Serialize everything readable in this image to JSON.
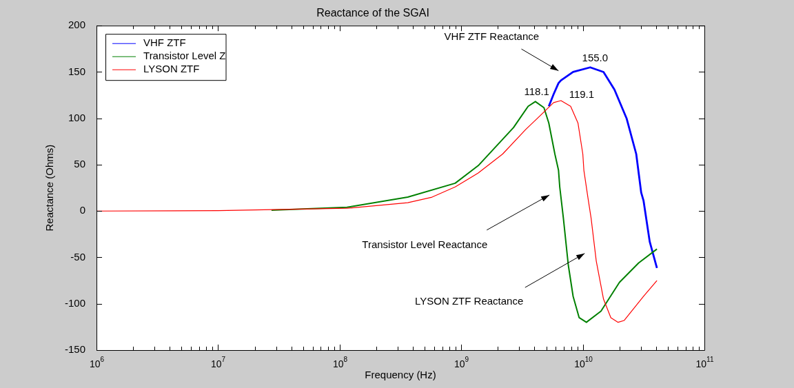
{
  "chart_data": {
    "type": "line",
    "title": "Reactance of the SGAI",
    "xlabel": "Frequency (Hz)",
    "ylabel": "Reactance (Ohms)",
    "log": "x",
    "grid": false,
    "legend": "top left",
    "marker": "none",
    "xlim": [
      1000000.0,
      100000000000.0
    ],
    "ylim": [
      -150,
      200
    ],
    "xticks": [
      {
        "value": 1000000.0,
        "label": "10$^{6}$"
      },
      {
        "value": 2000000.0,
        "label": null
      },
      {
        "value": 3000000.0,
        "label": null
      },
      {
        "value": 4000000.0,
        "label": null
      },
      {
        "value": 5000000.0,
        "label": null
      },
      {
        "value": 6000000.0,
        "label": null
      },
      {
        "value": 7000000.0,
        "label": null
      },
      {
        "value": 8000000.0,
        "label": null
      },
      {
        "value": 9000000.0,
        "label": null
      },
      {
        "value": 10000000.0,
        "label": "10$^{7}$"
      },
      {
        "value": 20000000.0,
        "label": null
      },
      {
        "value": 30000000.0,
        "label": null
      },
      {
        "value": 40000000.0,
        "label": null
      },
      {
        "value": 50000000.0,
        "label": null
      },
      {
        "value": 60000000.0,
        "label": null
      },
      {
        "value": 70000000.0,
        "label": null
      },
      {
        "value": 80000000.0,
        "label": null
      },
      {
        "value": 90000000.0,
        "label": null
      },
      {
        "value": 100000000.0,
        "label": "10$^{8}$"
      },
      {
        "value": 200000000.0,
        "label": null
      },
      {
        "value": 300000000.0,
        "label": null
      },
      {
        "value": 400000000.0,
        "label": null
      },
      {
        "value": 500000000.0,
        "label": null
      },
      {
        "value": 600000000.0,
        "label": null
      },
      {
        "value": 700000000.0,
        "label": null
      },
      {
        "value": 800000000.0,
        "label": null
      },
      {
        "value": 900000000.0,
        "label": null
      },
      {
        "value": 1000000000.0,
        "label": "10$^{9}$"
      },
      {
        "value": 2000000000.0,
        "label": null
      },
      {
        "value": 3000000000.0,
        "label": null
      },
      {
        "value": 4000000000.0,
        "label": null
      },
      {
        "value": 5000000000.0,
        "label": null
      },
      {
        "value": 6000000000.0,
        "label": null
      },
      {
        "value": 7000000000.0,
        "label": null
      },
      {
        "value": 8000000000.0,
        "label": null
      },
      {
        "value": 9000000000.0,
        "label": null
      },
      {
        "value": 10000000000.0,
        "label": "10$^{10}$"
      },
      {
        "value": 20000000000.0,
        "label": null
      },
      {
        "value": 30000000000.0,
        "label": null
      },
      {
        "value": 40000000000.0,
        "label": null
      },
      {
        "value": 50000000000.0,
        "label": null
      },
      {
        "value": 60000000000.0,
        "label": null
      },
      {
        "value": 70000000000.0,
        "label": null
      },
      {
        "value": 80000000000.0,
        "label": null
      },
      {
        "value": 90000000000.0,
        "label": null
      },
      {
        "value": 100000000000.0,
        "label": "10$^{11}$"
      }
    ],
    "yticks": [
      -150,
      -100,
      -50,
      0,
      50,
      100,
      150,
      200
    ],
    "series": [
      {
        "name": "VHF ZTF",
        "color": "#0000ff",
        "x": [
          5250000000.0,
          5750000000.0,
          6310000000.0,
          6610000000.0,
          8320000000.0,
          11500000000.0,
          14800000000.0,
          18200000000.0,
          22900000000.0,
          27500000000.0,
          30200000000.0,
          31600000000.0,
          35500000000.0,
          40700000000.0
        ],
        "values": [
          113,
          126,
          138,
          141,
          150,
          155,
          150,
          131,
          100,
          61.5,
          20,
          11,
          -33,
          -61.5
        ]
      },
      {
        "name": "Transistor Level Z",
        "color": "#008000",
        "x": [
          27500000.0,
          115000000.0,
          363000000.0,
          891000000.0,
          1380000000.0,
          2690000000.0,
          3550000000.0,
          4070000000.0,
          4790000000.0,
          5250000000.0,
          5890000000.0,
          6310000000.0,
          6460000000.0,
          6920000000.0,
          7590000000.0,
          8320000000.0,
          9330000000.0,
          10700000000.0,
          14100000000.0,
          20000000000.0,
          28800000000.0,
          40700000000.0
        ],
        "values": [
          1,
          4,
          15,
          30,
          49,
          90,
          113,
          118.1,
          111.5,
          95,
          61.5,
          44,
          26,
          -7.7,
          -58,
          -92,
          -115,
          -120,
          -108,
          -77,
          -56,
          -41
        ]
      },
      {
        "name": "LYSON ZTF",
        "color": "#ff0000",
        "x": [
          1000000.0,
          10000000.0,
          115000000.0,
          363000000.0,
          575000000.0,
          891000000.0,
          1380000000.0,
          2190000000.0,
          3390000000.0,
          4470000000.0,
          5750000000.0,
          6610000000.0,
          7940000000.0,
          9120000000.0,
          10000000000.0,
          10200000000.0,
          11000000000.0,
          11700000000.0,
          12900000000.0,
          14800000000.0,
          17000000000.0,
          19500000000.0,
          21900000000.0,
          31600000000.0,
          40700000000.0
        ],
        "values": [
          0,
          0.5,
          3,
          9,
          15,
          26,
          41,
          61.5,
          88,
          103,
          117,
          119.1,
          113,
          95,
          61.5,
          44,
          15,
          -7.7,
          -54,
          -95,
          -115,
          -120,
          -118,
          -92,
          -75
        ]
      }
    ],
    "annotations": [
      {
        "text": "155.0",
        "x": 11500000000.0,
        "y": 155
      },
      {
        "text": "118.1",
        "x": 4070000000.0,
        "y": 118.1
      },
      {
        "text": "119.1",
        "x": 6610000000.0,
        "y": 119.1
      },
      "VHF ZTF Reactance",
      "Transistor Level Reactance",
      "LYSON ZTF Reactance"
    ]
  }
}
